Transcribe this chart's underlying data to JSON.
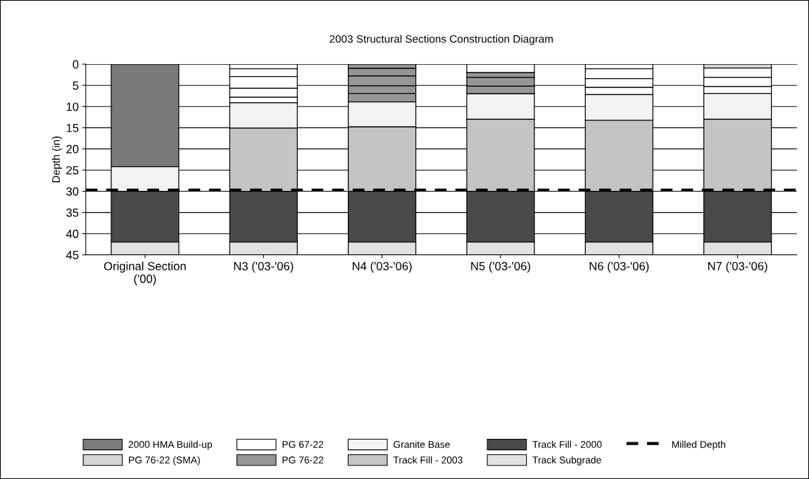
{
  "chart_data": {
    "type": "bar",
    "stacked": true,
    "title": "2003 Structural Sections Construction Diagram",
    "ylabel": "Depth (in)",
    "categories": [
      "Original Section\n('00)",
      "N3 ('03-'06)",
      "N4 ('03-'06)",
      "N5 ('03-'06)",
      "N6 ('03-'06)",
      "N7 ('03-'06)"
    ],
    "ylim": [
      45,
      0
    ],
    "yticks": [
      0,
      5,
      10,
      15,
      20,
      25,
      30,
      35,
      40,
      45
    ],
    "grid": "y",
    "legend": "bottom",
    "series": [
      {
        "name": "2000 HMA Build-up",
        "color": "#7a7a7a",
        "values": [
          24.2,
          null,
          null,
          null,
          null,
          null
        ]
      },
      {
        "name": "PG 76-22 (SMA)",
        "color": "#d4d4d4",
        "values": [
          null,
          null,
          null,
          null,
          null,
          0.9
        ]
      },
      {
        "name": "PG 67-22",
        "color": "#ffffff",
        "values": [
          null,
          1.1,
          null,
          2.0,
          1.1,
          2.2
        ]
      },
      {
        "color": "#ffffff",
        "values": [
          null,
          1.8,
          null,
          null,
          2.3,
          2.2
        ]
      },
      {
        "color": "#ffffff",
        "values": [
          null,
          2.8,
          null,
          null,
          2.1,
          1.6
        ]
      },
      {
        "color": "#ffffff",
        "values": [
          null,
          2.1,
          null,
          null,
          1.7,
          null
        ]
      },
      {
        "color": "#ffffff",
        "values": [
          null,
          1.3,
          null,
          null,
          null,
          null
        ]
      },
      {
        "name": "PG 76-22",
        "color": "#969696",
        "values": [
          null,
          null,
          1.0,
          1.1,
          null,
          null
        ]
      },
      {
        "color": "#969696",
        "values": [
          null,
          null,
          1.8,
          2.1,
          null,
          null
        ]
      },
      {
        "color": "#969696",
        "values": [
          null,
          null,
          2.3,
          1.8,
          null,
          null
        ]
      },
      {
        "color": "#969696",
        "values": [
          null,
          null,
          1.8,
          null,
          null,
          null
        ]
      },
      {
        "color": "#969696",
        "values": [
          null,
          null,
          2.0,
          null,
          null,
          null
        ]
      },
      {
        "name": "Granite Base",
        "color": "#f2f2f2",
        "values": [
          5.8,
          6.0,
          5.9,
          6.0,
          6.0,
          6.1
        ]
      },
      {
        "name": "Track Fill - 2003",
        "color": "#c4c4c4",
        "values": [
          null,
          14.9,
          15.2,
          17.0,
          16.8,
          17.0
        ]
      },
      {
        "name": "Track Fill - 2000",
        "color": "#4a4a4a",
        "values": [
          12,
          12,
          12,
          12,
          12,
          12
        ]
      },
      {
        "name": "Track Subgrade",
        "color": "#e2e2e2",
        "values": [
          3,
          3,
          3,
          3,
          3,
          3
        ]
      }
    ],
    "ref_lines": [
      {
        "axis": "y",
        "value": 29.7,
        "label": "Milled Depth",
        "color": "#000000",
        "line_style": "dashed"
      }
    ]
  }
}
